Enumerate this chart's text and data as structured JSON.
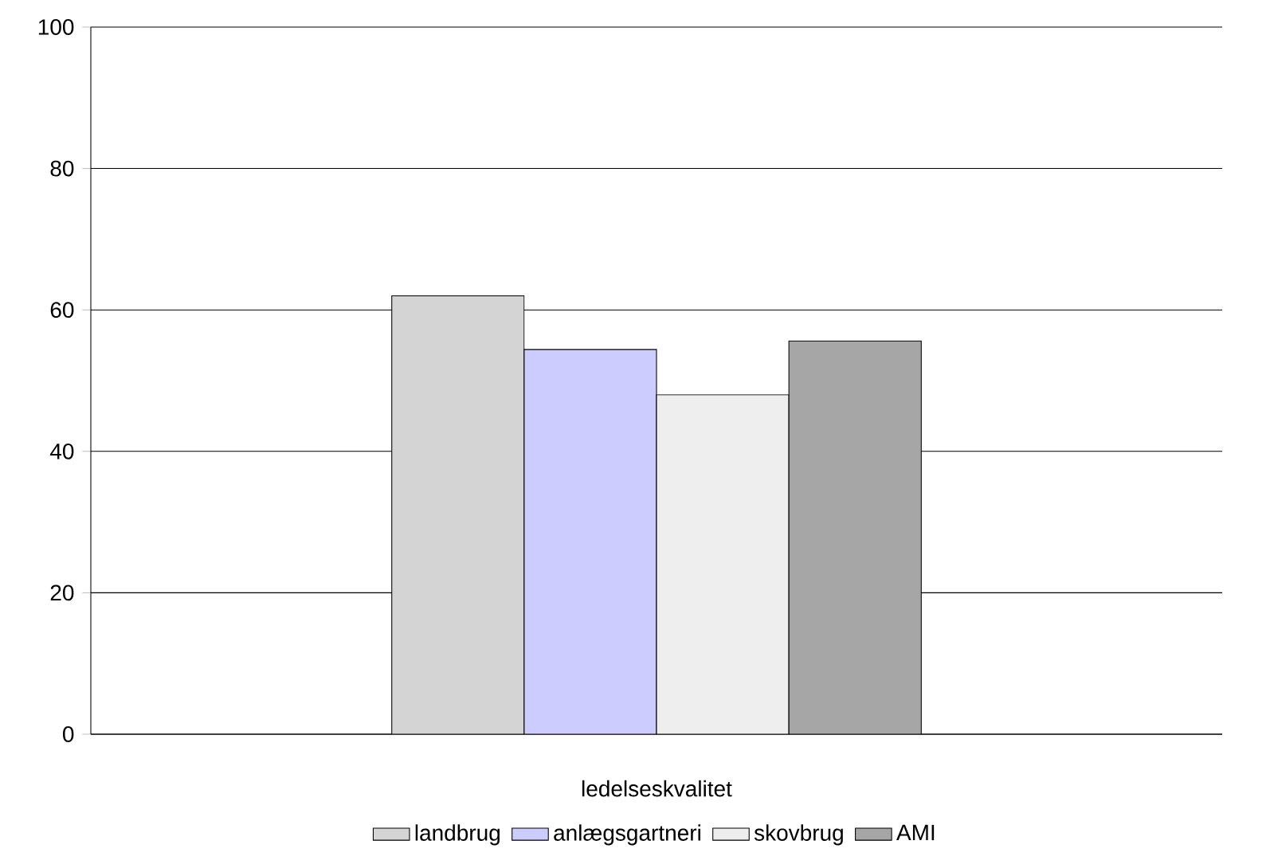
{
  "chart_data": {
    "type": "bar",
    "categories": [
      "ledelseskvalitet"
    ],
    "series": [
      {
        "name": "landbrug",
        "color": "#d4d4d4",
        "values": [
          62
        ]
      },
      {
        "name": "anlægsgartneri",
        "color": "#ccccff",
        "values": [
          54.4
        ]
      },
      {
        "name": "skovbrug",
        "color": "#eeeeee",
        "values": [
          48
        ]
      },
      {
        "name": "AMI",
        "color": "#a6a6a6",
        "values": [
          55.6
        ]
      }
    ],
    "ylim": [
      0,
      100
    ],
    "yticks": [
      0,
      20,
      40,
      60,
      80,
      100
    ],
    "grid": "y",
    "legend": "bottom"
  }
}
